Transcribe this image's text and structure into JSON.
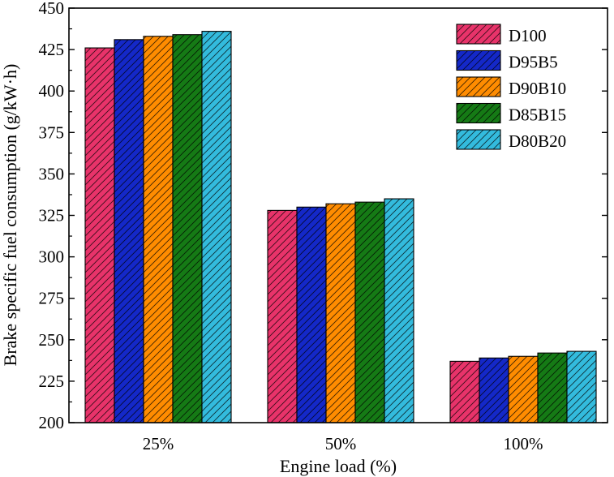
{
  "chart_data": {
    "type": "bar",
    "title": "",
    "xlabel": "Engine load (%)",
    "ylabel": "Brake specific fuel consumption (g/kW·h)",
    "categories": [
      "25%",
      "50%",
      "100%"
    ],
    "ylim": [
      200,
      450
    ],
    "yticks": [
      200,
      225,
      250,
      275,
      300,
      325,
      350,
      375,
      400,
      425,
      450
    ],
    "legend_position": "top-right",
    "series": [
      {
        "name": "D100",
        "color": "#E8336A",
        "values": [
          426,
          328,
          237
        ]
      },
      {
        "name": "D95B5",
        "color": "#1428C8",
        "values": [
          431,
          330,
          239
        ]
      },
      {
        "name": "D90B10",
        "color": "#FF8C00",
        "values": [
          433,
          332,
          240
        ]
      },
      {
        "name": "D85B15",
        "color": "#157A15",
        "values": [
          434,
          333,
          242
        ]
      },
      {
        "name": "D80B20",
        "color": "#33BBDD",
        "values": [
          436,
          335,
          243
        ]
      }
    ]
  }
}
